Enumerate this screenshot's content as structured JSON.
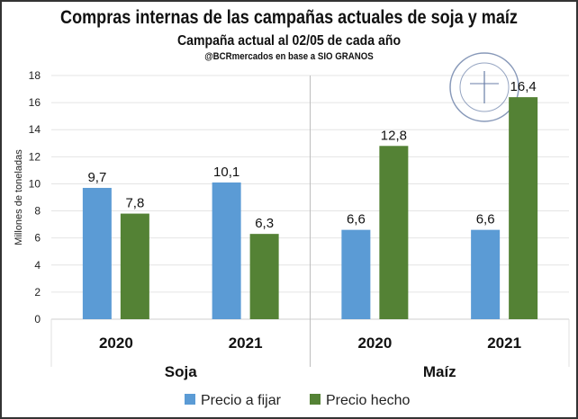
{
  "chart_data": {
    "type": "bar",
    "title": "Compras internas de las campañas actuales de soja y maíz",
    "subtitle": "Campaña actual al 02/05 de cada año",
    "source": "@BCRmercados en base a SIO GRANOS",
    "ylabel": "Millones de toneladas",
    "xlabel": "",
    "ylim": [
      0,
      18
    ],
    "yticks": [
      0,
      2,
      4,
      6,
      8,
      10,
      12,
      14,
      16,
      18
    ],
    "grid": true,
    "legend_position": "bottom",
    "groups": [
      {
        "name": "Soja",
        "categories": [
          "2020",
          "2021"
        ]
      },
      {
        "name": "Maíz",
        "categories": [
          "2020",
          "2021"
        ]
      }
    ],
    "categories": [
      "Soja 2020",
      "Soja 2021",
      "Maíz 2020",
      "Maíz 2021"
    ],
    "category_labels": [
      "2020",
      "2021",
      "2020",
      "2021"
    ],
    "series": [
      {
        "name": "Precio a fijar",
        "color": "#5b9bd5",
        "values": [
          9.7,
          10.1,
          6.6,
          6.6
        ],
        "labels": [
          "9,7",
          "10,1",
          "6,6",
          "6,6"
        ]
      },
      {
        "name": "Precio hecho",
        "color": "#548235",
        "values": [
          7.8,
          6.3,
          12.8,
          16.4
        ],
        "labels": [
          "7,8",
          "6,3",
          "12,8",
          "16,4"
        ]
      }
    ],
    "watermark": "Bolsa de Comercio de Rosario seal"
  }
}
